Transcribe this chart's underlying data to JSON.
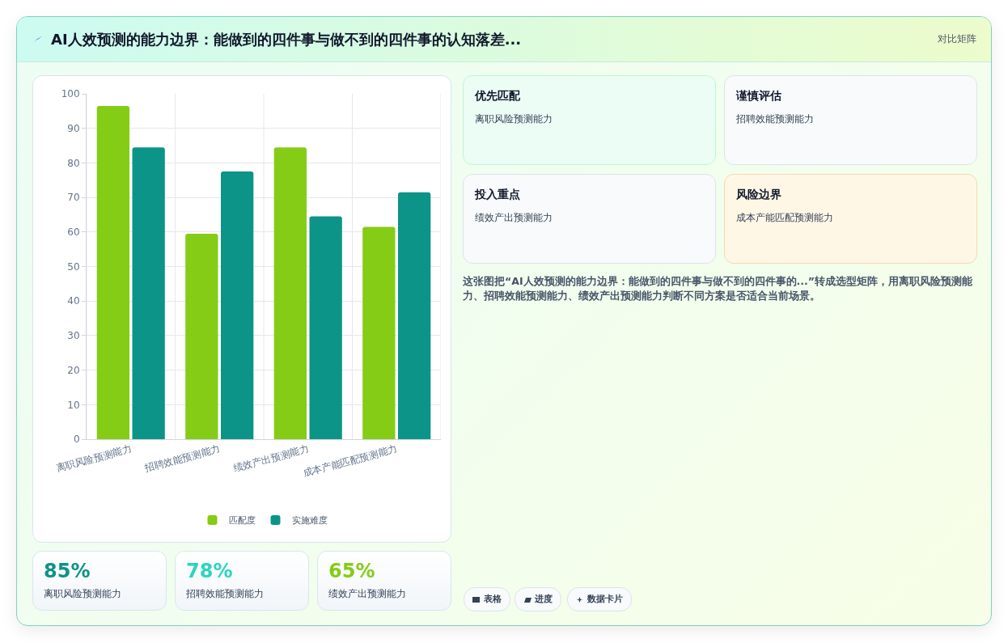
{
  "chart_data": [
    {
      "type": "bar",
      "title": "AI人效预测的能力边界：能做到的四件事与做不到的四件事的认知落差...",
      "categories": [
        "离职风险预测能力",
        "招聘效能预测能力",
        "绩效产出预测能力",
        "成本产能匹配预测能力"
      ],
      "series": [
        {
          "name": "匹配度",
          "color": "#84cc16",
          "values": [
            96.5,
            59.5,
            84.5,
            61.5
          ]
        },
        {
          "name": "实施难度",
          "color": "#0d9488",
          "values": [
            84.5,
            77.5,
            64.5,
            71.5
          ]
        }
      ],
      "ylim": [
        0,
        100
      ],
      "yticks": [
        0,
        10,
        20,
        30,
        40,
        50,
        60,
        70,
        80,
        90,
        100
      ],
      "grid": true,
      "legend": "bottom"
    },
    {
      "type": "other",
      "annotations": [
        "对比矩阵",
        "优先匹配",
        "离职风险预测能力",
        "谨慎评估",
        "招聘效能预测能力",
        "投入重点",
        "绩效产出预测能力",
        "风险边界",
        "成本产能匹配预测能力",
        "这张图把“AI人效预测的能力边界：能做到的四件事与做不到的四件事的...”转成选型矩阵，用离职风险预测能力、招聘效能预测能力、绩效产出预测能力判断不同方案是否适合当前场景。",
        "85%",
        "离职风险预测能力",
        "78%",
        "招聘效能预测能力",
        "65%",
        "绩效产出预测能力",
        "表格",
        "进度",
        "数据卡片"
      ]
    }
  ]
}
